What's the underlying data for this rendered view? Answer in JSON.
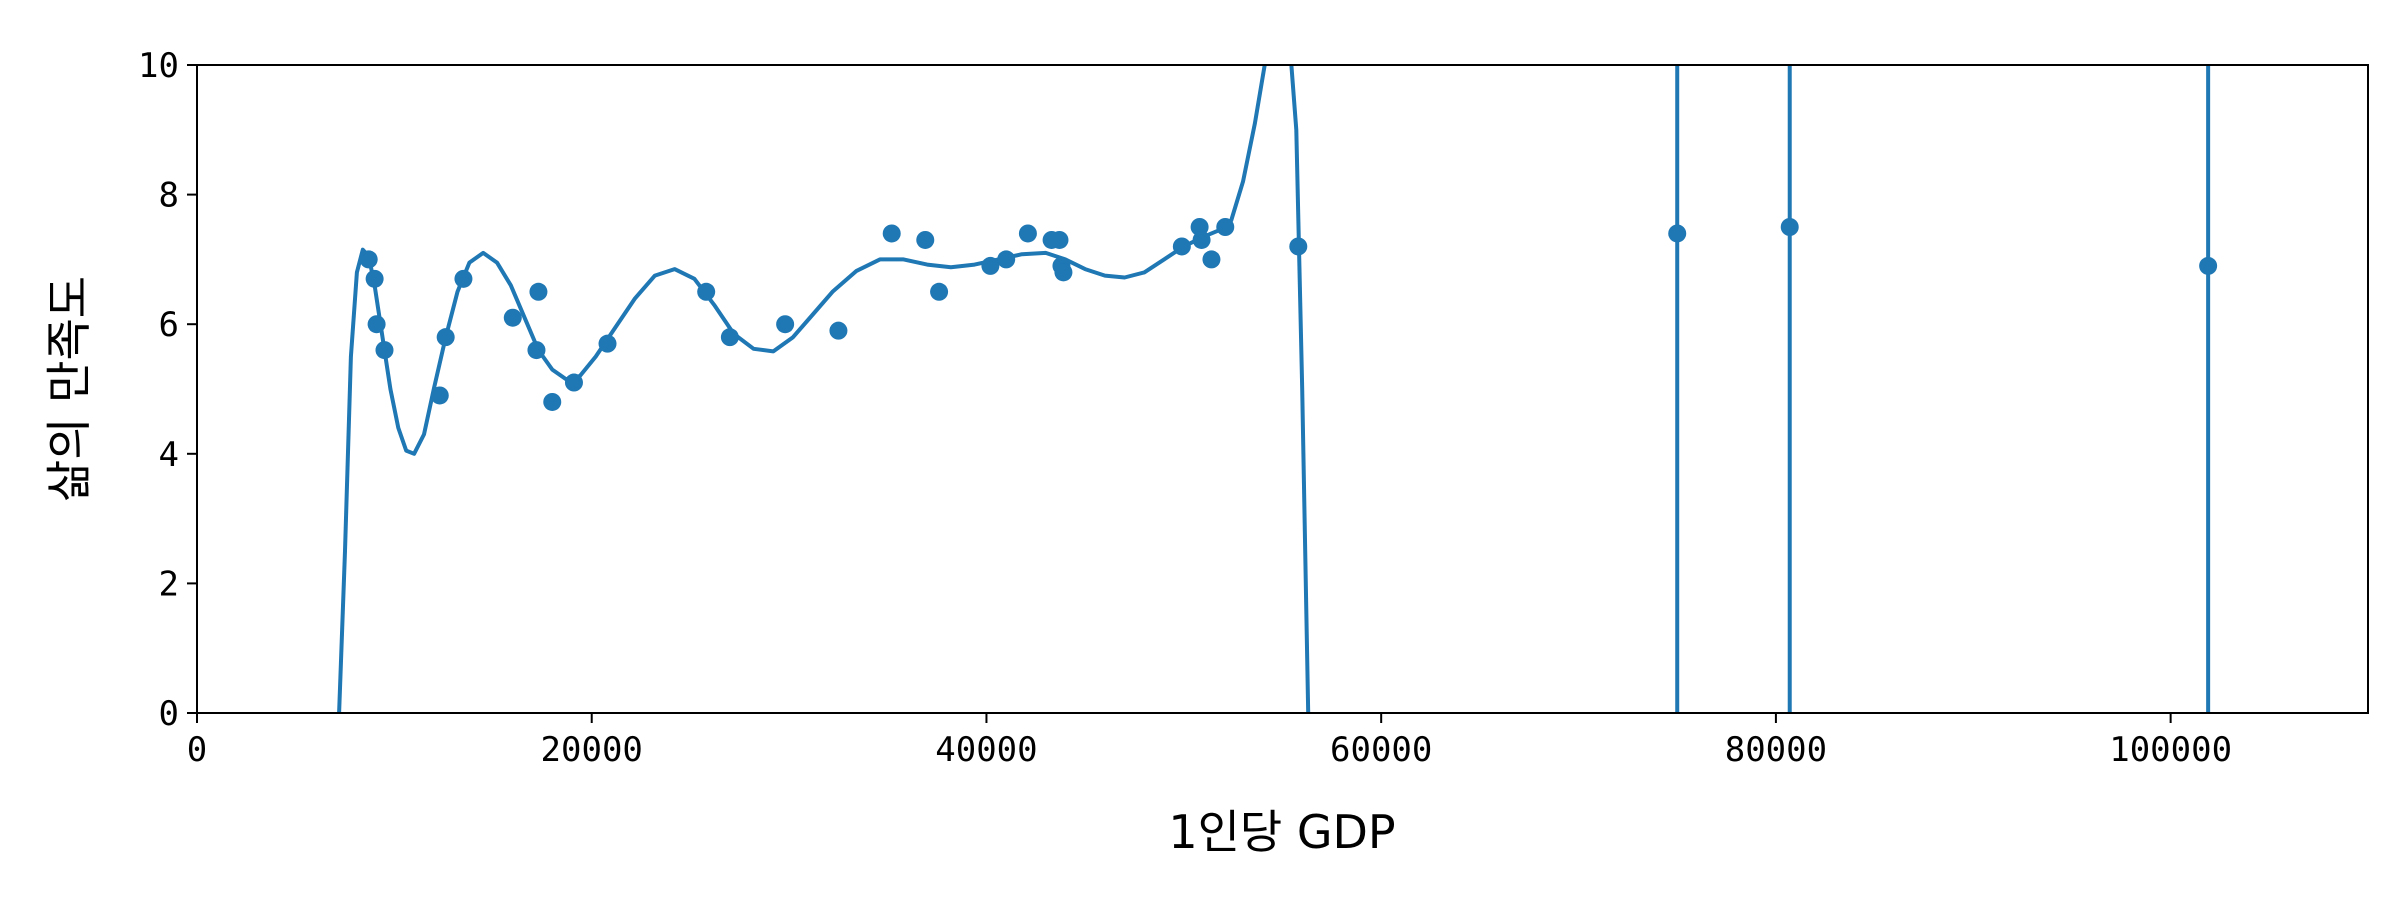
{
  "chart_data": {
    "type": "scatter",
    "xlabel": "1인당 GDP",
    "ylabel": "삶의 만족도",
    "xlim": [
      0,
      110000
    ],
    "ylim": [
      0,
      10
    ],
    "x_ticks": [
      0,
      20000,
      40000,
      60000,
      80000,
      100000
    ],
    "y_ticks": [
      0,
      2,
      4,
      6,
      8,
      10
    ],
    "grid": false,
    "colors": {
      "series": "#1f77b4",
      "axes": "#000000"
    },
    "series": [
      {
        "type": "scatter",
        "points": [
          [
            8700,
            7.0
          ],
          [
            9000,
            6.7
          ],
          [
            9100,
            6.0
          ],
          [
            9500,
            5.6
          ],
          [
            12300,
            4.9
          ],
          [
            12600,
            5.8
          ],
          [
            13500,
            6.7
          ],
          [
            16000,
            6.1
          ],
          [
            17200,
            5.6
          ],
          [
            17300,
            6.5
          ],
          [
            18000,
            4.8
          ],
          [
            19100,
            5.1
          ],
          [
            20800,
            5.7
          ],
          [
            25800,
            6.5
          ],
          [
            27000,
            5.8
          ],
          [
            29800,
            6.0
          ],
          [
            32500,
            5.9
          ],
          [
            35200,
            7.4
          ],
          [
            36900,
            7.3
          ],
          [
            37600,
            6.5
          ],
          [
            40200,
            6.9
          ],
          [
            41000,
            7.0
          ],
          [
            42100,
            7.4
          ],
          [
            43300,
            7.3
          ],
          [
            43700,
            7.3
          ],
          [
            43800,
            6.9
          ],
          [
            43900,
            6.8
          ],
          [
            49900,
            7.2
          ],
          [
            50800,
            7.5
          ],
          [
            50900,
            7.3
          ],
          [
            51400,
            7.0
          ],
          [
            52100,
            7.5
          ],
          [
            55800,
            7.2
          ],
          [
            75000,
            7.4
          ],
          [
            80700,
            7.5
          ],
          [
            101900,
            6.9
          ]
        ]
      },
      {
        "type": "line",
        "points": [
          [
            7200,
            0
          ],
          [
            7500,
            2.5
          ],
          [
            7800,
            5.5
          ],
          [
            8100,
            6.8
          ],
          [
            8400,
            7.15
          ],
          [
            8700,
            7.05
          ],
          [
            9000,
            6.6
          ],
          [
            9400,
            5.8
          ],
          [
            9800,
            5.0
          ],
          [
            10200,
            4.4
          ],
          [
            10600,
            4.05
          ],
          [
            11000,
            4.0
          ],
          [
            11500,
            4.3
          ],
          [
            12000,
            5.0
          ],
          [
            12600,
            5.8
          ],
          [
            13200,
            6.5
          ],
          [
            13800,
            6.95
          ],
          [
            14500,
            7.1
          ],
          [
            15200,
            6.95
          ],
          [
            15900,
            6.6
          ],
          [
            16600,
            6.1
          ],
          [
            17300,
            5.6
          ],
          [
            18000,
            5.3
          ],
          [
            18700,
            5.15
          ],
          [
            19400,
            5.2
          ],
          [
            20200,
            5.5
          ],
          [
            21200,
            5.95
          ],
          [
            22200,
            6.4
          ],
          [
            23200,
            6.75
          ],
          [
            24200,
            6.85
          ],
          [
            25200,
            6.7
          ],
          [
            26200,
            6.3
          ],
          [
            27200,
            5.85
          ],
          [
            28200,
            5.62
          ],
          [
            29200,
            5.58
          ],
          [
            30200,
            5.8
          ],
          [
            31200,
            6.15
          ],
          [
            32200,
            6.5
          ],
          [
            33400,
            6.82
          ],
          [
            34600,
            7.0
          ],
          [
            35800,
            7.0
          ],
          [
            37000,
            6.92
          ],
          [
            38200,
            6.88
          ],
          [
            39400,
            6.92
          ],
          [
            40600,
            7.0
          ],
          [
            41800,
            7.08
          ],
          [
            43000,
            7.1
          ],
          [
            44000,
            7.0
          ],
          [
            45000,
            6.85
          ],
          [
            46000,
            6.75
          ],
          [
            47000,
            6.72
          ],
          [
            48000,
            6.8
          ],
          [
            49000,
            7.0
          ],
          [
            50000,
            7.2
          ],
          [
            51000,
            7.35
          ],
          [
            51800,
            7.45
          ],
          [
            52400,
            7.6
          ],
          [
            53000,
            8.2
          ],
          [
            53600,
            9.1
          ],
          [
            54100,
            10.0
          ],
          [
            54800,
            10.6
          ],
          [
            55300,
            10.6
          ],
          [
            55700,
            9.0
          ],
          [
            56000,
            5.0
          ],
          [
            56300,
            0
          ]
        ]
      },
      {
        "type": "vlines",
        "x": [
          75000,
          80700,
          101900
        ]
      }
    ]
  }
}
